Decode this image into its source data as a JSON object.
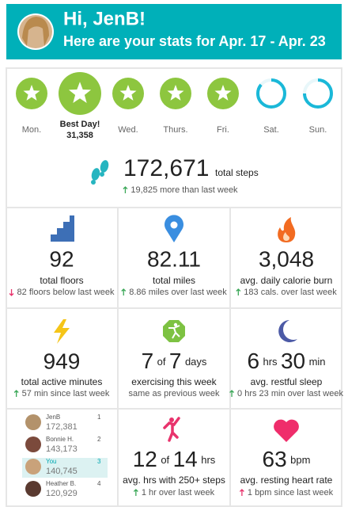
{
  "header": {
    "greeting": "Hi, JenB!",
    "subtitle": "Here are your stats for Apr. 17 - Apr. 23"
  },
  "days": [
    {
      "label": "Mon."
    },
    {
      "label": "Best Day!",
      "steps": "31,358"
    },
    {
      "label": "Wed."
    },
    {
      "label": "Thurs."
    },
    {
      "label": "Fri."
    },
    {
      "label": "Sat."
    },
    {
      "label": "Sun."
    }
  ],
  "steps": {
    "value": "172,671",
    "unit": "total steps",
    "change": "19,825 more than last week"
  },
  "stats": {
    "floors": {
      "value": "92",
      "label": "total floors",
      "change": "82 floors below last week"
    },
    "miles": {
      "value": "82.11",
      "label": "total miles",
      "change": "8.86 miles over last week"
    },
    "calories": {
      "value": "3,048",
      "label": "avg. daily calorie burn",
      "change": "183 cals. over last week"
    },
    "active_minutes": {
      "value": "949",
      "label": "total active minutes",
      "change": "57 min since last week"
    },
    "exercise": {
      "value": "7",
      "connector": "of",
      "total": "7",
      "unit": "days",
      "label": "exercising this week",
      "change": "same as previous week"
    },
    "sleep": {
      "hours": "6",
      "hours_unit": "hrs",
      "minutes": "30",
      "minutes_unit": "min",
      "label": "avg. restful sleep",
      "change": "0 hrs 23 min over last week"
    },
    "hourly": {
      "value": "12",
      "connector": "of",
      "total": "14",
      "unit": "hrs",
      "label": "avg. hrs with 250+ steps",
      "change": "1 hr over last week"
    },
    "heart_rate": {
      "value": "63",
      "unit": "bpm",
      "label": "avg. resting heart rate",
      "change": "1 bpm since last week"
    }
  },
  "leaderboard": [
    {
      "name": "JenB",
      "rank": "1",
      "steps": "172,381"
    },
    {
      "name": "Bonnie H.",
      "rank": "2",
      "steps": "143,173"
    },
    {
      "name": "You",
      "rank": "3",
      "steps": "140,745"
    },
    {
      "name": "Heather B.",
      "rank": "4",
      "steps": "120,929"
    }
  ]
}
